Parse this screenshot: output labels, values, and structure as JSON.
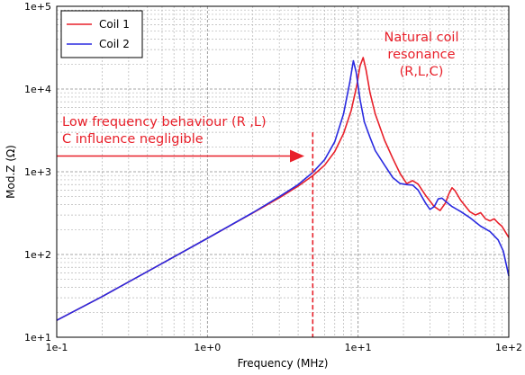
{
  "chart_data": {
    "type": "line",
    "xlabel": "Frequency (MHz)",
    "ylabel": "Mod.Z (Ω)",
    "xscale": "log",
    "yscale": "log",
    "xlim": [
      0.1,
      100
    ],
    "ylim": [
      10,
      100000
    ],
    "grid": true,
    "legend_position": "top-left",
    "x_ticks": [
      {
        "value": 0.1,
        "label": "1e-1"
      },
      {
        "value": 1,
        "label": "1e+0"
      },
      {
        "value": 10,
        "label": "1e+1"
      },
      {
        "value": 100,
        "label": "1e+2"
      }
    ],
    "y_ticks": [
      {
        "value": 10,
        "label": "1e+1"
      },
      {
        "value": 100,
        "label": "1e+2"
      },
      {
        "value": 1000,
        "label": "1e+3"
      },
      {
        "value": 10000,
        "label": "1e+4"
      },
      {
        "value": 100000,
        "label": "1e+5"
      }
    ],
    "series": [
      {
        "name": "Coil 1",
        "color": "#e8202a",
        "points": [
          [
            0.1,
            16
          ],
          [
            0.2,
            31
          ],
          [
            0.5,
            78
          ],
          [
            1,
            157
          ],
          [
            2,
            318
          ],
          [
            3,
            485
          ],
          [
            4,
            670
          ],
          [
            5,
            895
          ],
          [
            6,
            1200
          ],
          [
            7,
            1750
          ],
          [
            8,
            2900
          ],
          [
            9,
            5500
          ],
          [
            9.8,
            11000
          ],
          [
            10.3,
            19000
          ],
          [
            10.8,
            24000
          ],
          [
            11.3,
            17000
          ],
          [
            12,
            9000
          ],
          [
            13,
            5000
          ],
          [
            15,
            2400
          ],
          [
            17,
            1450
          ],
          [
            19,
            950
          ],
          [
            21,
            720
          ],
          [
            23,
            780
          ],
          [
            25,
            710
          ],
          [
            28,
            520
          ],
          [
            32,
            380
          ],
          [
            35,
            340
          ],
          [
            38,
            420
          ],
          [
            40,
            540
          ],
          [
            42,
            640
          ],
          [
            44,
            590
          ],
          [
            48,
            450
          ],
          [
            55,
            330
          ],
          [
            60,
            300
          ],
          [
            65,
            320
          ],
          [
            70,
            270
          ],
          [
            75,
            255
          ],
          [
            80,
            270
          ],
          [
            85,
            240
          ],
          [
            90,
            220
          ],
          [
            100,
            160
          ]
        ]
      },
      {
        "name": "Coil 2",
        "color": "#2a2ae0",
        "points": [
          [
            0.1,
            16
          ],
          [
            0.2,
            31
          ],
          [
            0.5,
            78
          ],
          [
            1,
            157
          ],
          [
            2,
            320
          ],
          [
            3,
            500
          ],
          [
            4,
            700
          ],
          [
            5,
            980
          ],
          [
            6,
            1400
          ],
          [
            7,
            2300
          ],
          [
            8,
            5000
          ],
          [
            8.8,
            12000
          ],
          [
            9.3,
            22000
          ],
          [
            9.7,
            16000
          ],
          [
            10.3,
            7500
          ],
          [
            11,
            4000
          ],
          [
            12,
            2600
          ],
          [
            13,
            1800
          ],
          [
            15,
            1200
          ],
          [
            17,
            850
          ],
          [
            19,
            720
          ],
          [
            21,
            700
          ],
          [
            23,
            690
          ],
          [
            25,
            600
          ],
          [
            28,
            420
          ],
          [
            30,
            350
          ],
          [
            32,
            380
          ],
          [
            34,
            470
          ],
          [
            36,
            480
          ],
          [
            38,
            440
          ],
          [
            42,
            380
          ],
          [
            48,
            330
          ],
          [
            55,
            280
          ],
          [
            65,
            220
          ],
          [
            75,
            190
          ],
          [
            85,
            150
          ],
          [
            92,
            110
          ],
          [
            100,
            55
          ]
        ]
      }
    ],
    "annotations": {
      "resonance_label": [
        "Natural coil",
        "resonance",
        "(R,L,C)"
      ],
      "low_freq_label": [
        "Low frequency behaviour (R ,L)",
        "C influence negligible"
      ],
      "arrow_start": [
        0.1,
        1550
      ],
      "arrow_end": [
        4.4,
        1550
      ],
      "marker_frequency": 5
    }
  }
}
